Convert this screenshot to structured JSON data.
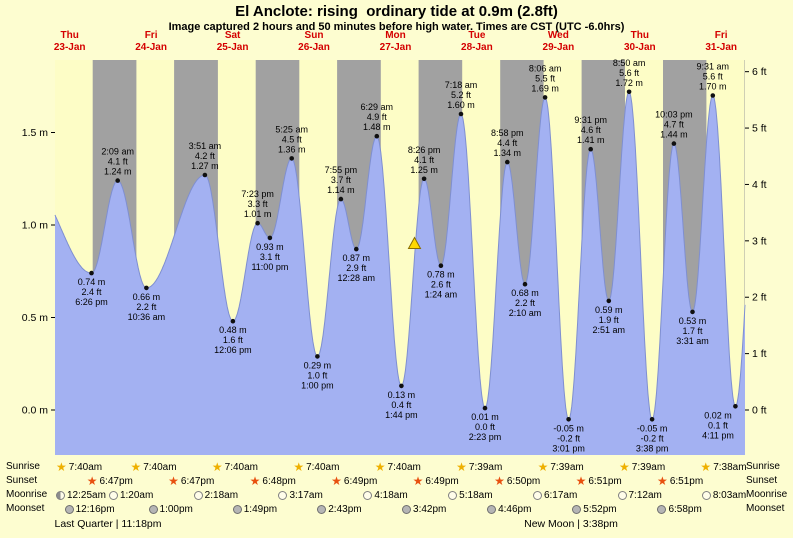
{
  "colors": {
    "background": "#fdfdd0",
    "daylight_band": "#fdfdc6",
    "night_band": "#a1a1a1",
    "tide_fill": "#a3b1f2",
    "tide_line": "#7f8fd0",
    "day_label_red": "#d40000",
    "text_black": "#000000",
    "marker_yellow": "#ffd800"
  },
  "header": {
    "title": "El Anclote: rising  ordinary tide at 0.9m (2.8ft)",
    "subtitle": "Image captured 2 hours and 50 minutes before high water. Times are CST (UTC -6.0hrs)"
  },
  "y_axis": {
    "meters": [
      {
        "m": 1.5,
        "label": "1.5 m"
      },
      {
        "m": 1.0,
        "label": "1.0 m"
      },
      {
        "m": 0.5,
        "label": "0.5 m"
      },
      {
        "m": 0.0,
        "label": "0.0 m"
      }
    ],
    "feet": [
      {
        "ft": 6,
        "label": "6 ft"
      },
      {
        "ft": 5,
        "label": "5 ft"
      },
      {
        "ft": 4,
        "label": "4 ft"
      },
      {
        "ft": 3,
        "label": "3 ft"
      },
      {
        "ft": 2,
        "label": "2 ft"
      },
      {
        "ft": 1,
        "label": "1 ft"
      },
      {
        "ft": 0,
        "label": "0 ft"
      }
    ]
  },
  "days": [
    {
      "weekday": "Thu",
      "date": "23-Jan"
    },
    {
      "weekday": "Fri",
      "date": "24-Jan"
    },
    {
      "weekday": "Sat",
      "date": "25-Jan"
    },
    {
      "weekday": "Sun",
      "date": "26-Jan"
    },
    {
      "weekday": "Mon",
      "date": "27-Jan"
    },
    {
      "weekday": "Tue",
      "date": "28-Jan"
    },
    {
      "weekday": "Wed",
      "date": "29-Jan"
    },
    {
      "weekday": "Thu",
      "date": "30-Jan"
    },
    {
      "weekday": "Fri",
      "date": "31-Jan"
    }
  ],
  "chart_data": {
    "type": "area",
    "title": "El Anclote tide heights, 23-Jan to 31-Jan",
    "x_axis": "date/time (CST)",
    "y_axis_left": "meters",
    "y_axis_right": "feet",
    "ylim_m": [
      -0.25,
      1.9
    ],
    "tide_events": [
      {
        "day": 0,
        "time": "6:26 pm",
        "type": "low",
        "m": 0.74,
        "ft": 2.4
      },
      {
        "day": 1,
        "time": "2:09 am",
        "type": "high",
        "m": 1.24,
        "ft": 4.1
      },
      {
        "day": 1,
        "time": "10:36 am",
        "type": "low",
        "m": 0.66,
        "ft": 2.2
      },
      {
        "day": 2,
        "time": "3:51 am",
        "type": "high",
        "m": 1.27,
        "ft": 4.2
      },
      {
        "day": 2,
        "time": "12:06 pm",
        "type": "low",
        "m": 0.48,
        "ft": 1.6
      },
      {
        "day": 2,
        "time": "7:23 pm",
        "type": "high",
        "m": 1.01,
        "ft": 3.3
      },
      {
        "day": 2,
        "time": "11:00 pm",
        "type": "low",
        "m": 0.93,
        "ft": 3.1
      },
      {
        "day": 3,
        "time": "5:25 am",
        "type": "high",
        "m": 1.36,
        "ft": 4.5
      },
      {
        "day": 3,
        "time": "1:00 pm",
        "type": "low",
        "m": 0.29,
        "ft": 1.0
      },
      {
        "day": 3,
        "time": "7:55 pm",
        "type": "high",
        "m": 1.14,
        "ft": 3.7
      },
      {
        "day": 4,
        "time": "12:28 am",
        "type": "low",
        "m": 0.87,
        "ft": 2.9
      },
      {
        "day": 4,
        "time": "6:29 am",
        "type": "high",
        "m": 1.48,
        "ft": 4.9
      },
      {
        "day": 4,
        "time": "1:44 pm",
        "type": "low",
        "m": 0.13,
        "ft": 0.4
      },
      {
        "day": 4,
        "time": "8:26 pm",
        "type": "high",
        "m": 1.25,
        "ft": 4.1
      },
      {
        "day": 5,
        "time": "1:24 am",
        "type": "low",
        "m": 0.78,
        "ft": 2.6
      },
      {
        "day": 5,
        "time": "7:18 am",
        "type": "high",
        "m": 1.6,
        "ft": 5.2
      },
      {
        "day": 5,
        "time": "2:23 pm",
        "type": "low",
        "m": 0.01,
        "ft": 0.0
      },
      {
        "day": 5,
        "time": "8:58 pm",
        "type": "high",
        "m": 1.34,
        "ft": 4.4
      },
      {
        "day": 6,
        "time": "2:10 am",
        "type": "low",
        "m": 0.68,
        "ft": 2.2
      },
      {
        "day": 6,
        "time": "8:06 am",
        "type": "high",
        "m": 1.69,
        "ft": 5.5
      },
      {
        "day": 6,
        "time": "3:01 pm",
        "type": "low",
        "m": -0.05,
        "ft": -0.2
      },
      {
        "day": 6,
        "time": "9:31 pm",
        "type": "high",
        "m": 1.41,
        "ft": 4.6
      },
      {
        "day": 7,
        "time": "2:51 am",
        "type": "low",
        "m": 0.59,
        "ft": 1.9
      },
      {
        "day": 7,
        "time": "8:50 am",
        "type": "high",
        "m": 1.72,
        "ft": 5.6
      },
      {
        "day": 7,
        "time": "3:38 pm",
        "type": "low",
        "m": -0.05,
        "ft": -0.2
      },
      {
        "day": 7,
        "time": "10:03 pm",
        "type": "high",
        "m": 1.44,
        "ft": 4.7
      },
      {
        "day": 8,
        "time": "3:31 am",
        "type": "low",
        "m": 0.53,
        "ft": 1.7
      },
      {
        "day": 8,
        "time": "9:31 am",
        "type": "high",
        "m": 1.7,
        "ft": 5.6
      },
      {
        "day": 8,
        "time": "4:11 pm",
        "type": "low",
        "m": 0.02,
        "ft": 0.1
      }
    ],
    "current_marker": {
      "day": 4,
      "time": "5:36 pm",
      "m": 0.9
    },
    "edge_points": {
      "start": {
        "day": 0,
        "time": "12:30 am",
        "m": 1.22
      },
      "end": {
        "day": 8,
        "time": "10:40 pm",
        "m": 1.4
      }
    }
  },
  "astro": {
    "rows": [
      {
        "name": "Sunrise",
        "icon": "sunrise-star",
        "events": [
          {
            "day": 0,
            "time": "7:40am"
          },
          {
            "day": 1,
            "time": "7:40am"
          },
          {
            "day": 2,
            "time": "7:40am"
          },
          {
            "day": 3,
            "time": "7:40am"
          },
          {
            "day": 4,
            "time": "7:40am"
          },
          {
            "day": 5,
            "time": "7:39am"
          },
          {
            "day": 6,
            "time": "7:39am"
          },
          {
            "day": 7,
            "time": "7:39am"
          },
          {
            "day": 8,
            "time": "7:38am"
          }
        ]
      },
      {
        "name": "Sunset",
        "icon": "sunset-star",
        "events": [
          {
            "day": 0,
            "time": "6:47pm"
          },
          {
            "day": 1,
            "time": "6:47pm"
          },
          {
            "day": 2,
            "time": "6:48pm"
          },
          {
            "day": 3,
            "time": "6:49pm"
          },
          {
            "day": 4,
            "time": "6:49pm"
          },
          {
            "day": 5,
            "time": "6:50pm"
          },
          {
            "day": 6,
            "time": "6:51pm"
          },
          {
            "day": 7,
            "time": "6:51pm"
          }
        ]
      },
      {
        "name": "Moonrise",
        "icon": "moon-circle-light",
        "events": [
          {
            "day": 0,
            "time": "12:25am",
            "phase": "last-quarter"
          },
          {
            "day": 1,
            "time": "1:20am"
          },
          {
            "day": 2,
            "time": "2:18am"
          },
          {
            "day": 3,
            "time": "3:17am"
          },
          {
            "day": 4,
            "time": "4:18am"
          },
          {
            "day": 5,
            "time": "5:18am"
          },
          {
            "day": 6,
            "time": "6:17am"
          },
          {
            "day": 7,
            "time": "7:12am"
          },
          {
            "day": 8,
            "time": "8:03am"
          }
        ]
      },
      {
        "name": "Moonset",
        "icon": "moon-circle-gray",
        "events": [
          {
            "day": 0,
            "time": "12:16pm"
          },
          {
            "day": 1,
            "time": "1:00pm"
          },
          {
            "day": 2,
            "time": "1:49pm"
          },
          {
            "day": 3,
            "time": "2:43pm"
          },
          {
            "day": 4,
            "time": "3:42pm"
          },
          {
            "day": 5,
            "time": "4:46pm"
          },
          {
            "day": 6,
            "time": "5:52pm"
          },
          {
            "day": 7,
            "time": "6:58pm"
          }
        ]
      }
    ],
    "phases": [
      {
        "label": "Last Quarter | 11:18pm",
        "day": 0,
        "time": "11:18pm"
      },
      {
        "label": "New Moon | 3:38pm",
        "day": 6,
        "time": "3:38pm"
      }
    ]
  }
}
